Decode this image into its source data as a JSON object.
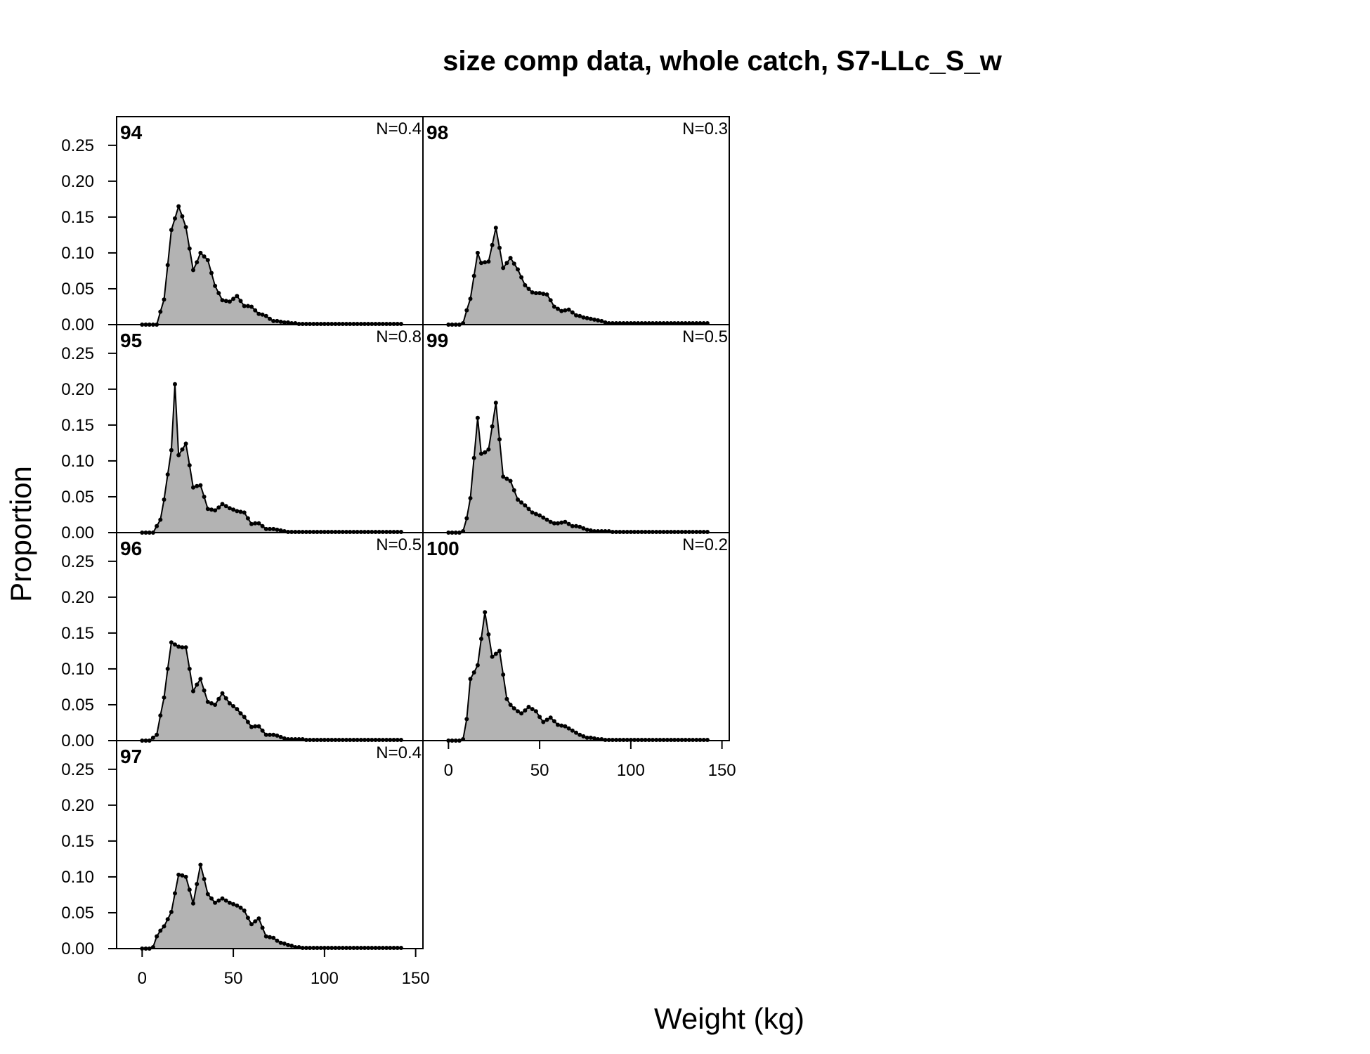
{
  "chart_data": {
    "type": "area",
    "title": "size comp data, whole catch, S7-LLc_S_w",
    "xlabel": "Weight (kg)",
    "ylabel": "Proportion",
    "xlim": [
      -14,
      154
    ],
    "ylim": [
      0,
      0.29
    ],
    "x_ticks": [
      0,
      50,
      100,
      150
    ],
    "y_ticks": [
      0,
      0.05,
      0.1,
      0.15,
      0.2,
      0.25
    ],
    "x_tick_labels": [
      "0",
      "50",
      "100",
      "150"
    ],
    "y_tick_labels": [
      "0.00",
      "0.05",
      "0.10",
      "0.15",
      "0.20",
      "0.25"
    ],
    "x": [
      0,
      2,
      4,
      6,
      8,
      10,
      12,
      14,
      16,
      18,
      20,
      22,
      24,
      26,
      28,
      30,
      32,
      34,
      36,
      38,
      40,
      42,
      44,
      46,
      48,
      50,
      52,
      54,
      56,
      58,
      60,
      62,
      64,
      66,
      68,
      70,
      72,
      74,
      76,
      78,
      80,
      82,
      84,
      86,
      88,
      90,
      92,
      94,
      96,
      98,
      100,
      102,
      104,
      106,
      108,
      110,
      112,
      114,
      116,
      118,
      120,
      122,
      124,
      126,
      128,
      130,
      132,
      134,
      136,
      138,
      140,
      142
    ],
    "series": [
      {
        "name": "94",
        "n_label": "N=0.4",
        "values": [
          0,
          0,
          0,
          0,
          0,
          0.018,
          0.035,
          0.083,
          0.132,
          0.148,
          0.165,
          0.151,
          0.136,
          0.106,
          0.076,
          0.087,
          0.1,
          0.095,
          0.09,
          0.072,
          0.054,
          0.044,
          0.034,
          0.033,
          0.032,
          0.036,
          0.04,
          0.033,
          0.026,
          0.026,
          0.025,
          0.02,
          0.015,
          0.014,
          0.012,
          0.008,
          0.005,
          0.005,
          0.004,
          0.003,
          0.003,
          0.002,
          0.002,
          0.001,
          0.001,
          0.001,
          0.001,
          0.001,
          0.001,
          0.001,
          0.001,
          0.001,
          0.001,
          0.001,
          0.001,
          0.001,
          0.001,
          0.001,
          0.001,
          0.001,
          0.001,
          0.001,
          0.001,
          0.001,
          0.001,
          0.001,
          0.001,
          0.001,
          0.001,
          0.001,
          0.001,
          0.001
        ]
      },
      {
        "name": "95",
        "n_label": "N=0.8",
        "values": [
          0,
          0,
          0,
          0,
          0.009,
          0.018,
          0.046,
          0.081,
          0.115,
          0.207,
          0.108,
          0.116,
          0.124,
          0.094,
          0.063,
          0.065,
          0.066,
          0.05,
          0.033,
          0.032,
          0.031,
          0.035,
          0.04,
          0.037,
          0.034,
          0.032,
          0.03,
          0.029,
          0.028,
          0.02,
          0.012,
          0.013,
          0.013,
          0.009,
          0.005,
          0.005,
          0.005,
          0.004,
          0.003,
          0.002,
          0.001,
          0.001,
          0.001,
          0.001,
          0.001,
          0.001,
          0.001,
          0.001,
          0.001,
          0.001,
          0.001,
          0.001,
          0.001,
          0.001,
          0.001,
          0.001,
          0.001,
          0.001,
          0.001,
          0.001,
          0.001,
          0.001,
          0.001,
          0.001,
          0.001,
          0.001,
          0.001,
          0.001,
          0.001,
          0.001,
          0.001,
          0.001
        ]
      },
      {
        "name": "96",
        "n_label": "N=0.5",
        "values": [
          0,
          0,
          0,
          0.004,
          0.008,
          0.035,
          0.06,
          0.1,
          0.137,
          0.134,
          0.131,
          0.13,
          0.13,
          0.1,
          0.069,
          0.078,
          0.086,
          0.07,
          0.054,
          0.052,
          0.05,
          0.058,
          0.066,
          0.059,
          0.052,
          0.048,
          0.044,
          0.038,
          0.033,
          0.026,
          0.019,
          0.02,
          0.02,
          0.014,
          0.008,
          0.008,
          0.008,
          0.007,
          0.005,
          0.003,
          0.002,
          0.002,
          0.002,
          0.002,
          0.002,
          0.001,
          0.001,
          0.001,
          0.001,
          0.001,
          0.001,
          0.001,
          0.001,
          0.001,
          0.001,
          0.001,
          0.001,
          0.001,
          0.001,
          0.001,
          0.001,
          0.001,
          0.001,
          0.001,
          0.001,
          0.001,
          0.001,
          0.001,
          0.001,
          0.001,
          0.001,
          0.001
        ]
      },
      {
        "name": "97",
        "n_label": "N=0.4",
        "values": [
          0,
          0,
          0,
          0.002,
          0.017,
          0.025,
          0.031,
          0.041,
          0.051,
          0.077,
          0.103,
          0.102,
          0.1,
          0.082,
          0.063,
          0.09,
          0.117,
          0.097,
          0.076,
          0.07,
          0.064,
          0.067,
          0.07,
          0.067,
          0.064,
          0.062,
          0.06,
          0.057,
          0.053,
          0.043,
          0.034,
          0.038,
          0.042,
          0.029,
          0.017,
          0.016,
          0.015,
          0.011,
          0.008,
          0.007,
          0.005,
          0.004,
          0.002,
          0.002,
          0.001,
          0.001,
          0.001,
          0.001,
          0.001,
          0.001,
          0.001,
          0.001,
          0.001,
          0.001,
          0.001,
          0.001,
          0.001,
          0.001,
          0.001,
          0.001,
          0.001,
          0.001,
          0.001,
          0.001,
          0.001,
          0.001,
          0.001,
          0.001,
          0.001,
          0.001,
          0.001,
          0.001
        ]
      },
      {
        "name": "98",
        "n_label": "N=0.3",
        "values": [
          0,
          0,
          0,
          0,
          0.002,
          0.02,
          0.036,
          0.068,
          0.1,
          0.086,
          0.087,
          0.088,
          0.111,
          0.135,
          0.107,
          0.079,
          0.086,
          0.093,
          0.085,
          0.077,
          0.066,
          0.055,
          0.05,
          0.045,
          0.044,
          0.044,
          0.043,
          0.042,
          0.034,
          0.025,
          0.022,
          0.019,
          0.02,
          0.021,
          0.017,
          0.013,
          0.012,
          0.01,
          0.009,
          0.008,
          0.007,
          0.006,
          0.005,
          0.003,
          0.002,
          0.002,
          0.002,
          0.002,
          0.002,
          0.002,
          0.002,
          0.002,
          0.002,
          0.002,
          0.002,
          0.002,
          0.002,
          0.002,
          0.002,
          0.002,
          0.002,
          0.002,
          0.002,
          0.002,
          0.002,
          0.002,
          0.002,
          0.002,
          0.002,
          0.002,
          0.002,
          0.002
        ]
      },
      {
        "name": "99",
        "n_label": "N=0.5",
        "values": [
          0,
          0,
          0,
          0,
          0.002,
          0.02,
          0.048,
          0.104,
          0.16,
          0.11,
          0.112,
          0.116,
          0.148,
          0.181,
          0.13,
          0.078,
          0.075,
          0.072,
          0.059,
          0.046,
          0.042,
          0.038,
          0.033,
          0.028,
          0.026,
          0.024,
          0.021,
          0.018,
          0.015,
          0.013,
          0.013,
          0.014,
          0.015,
          0.012,
          0.009,
          0.009,
          0.008,
          0.006,
          0.004,
          0.003,
          0.002,
          0.002,
          0.002,
          0.002,
          0.002,
          0.001,
          0.001,
          0.001,
          0.001,
          0.001,
          0.001,
          0.001,
          0.001,
          0.001,
          0.001,
          0.001,
          0.001,
          0.001,
          0.001,
          0.001,
          0.001,
          0.001,
          0.001,
          0.001,
          0.001,
          0.001,
          0.001,
          0.001,
          0.001,
          0.001,
          0.001,
          0.001
        ]
      },
      {
        "name": "100",
        "n_label": "N=0.2",
        "values": [
          0,
          0,
          0,
          0,
          0.002,
          0.03,
          0.086,
          0.095,
          0.105,
          0.142,
          0.179,
          0.148,
          0.117,
          0.121,
          0.125,
          0.092,
          0.058,
          0.05,
          0.045,
          0.041,
          0.038,
          0.042,
          0.047,
          0.044,
          0.041,
          0.033,
          0.026,
          0.029,
          0.032,
          0.027,
          0.022,
          0.021,
          0.02,
          0.017,
          0.014,
          0.011,
          0.008,
          0.006,
          0.004,
          0.004,
          0.003,
          0.002,
          0.002,
          0.001,
          0.001,
          0.001,
          0.001,
          0.001,
          0.001,
          0.001,
          0.001,
          0.001,
          0.001,
          0.001,
          0.001,
          0.001,
          0.001,
          0.001,
          0.001,
          0.001,
          0.001,
          0.001,
          0.001,
          0.001,
          0.001,
          0.001,
          0.001,
          0.001,
          0.001,
          0.001,
          0.001,
          0.001
        ]
      }
    ],
    "colors": {
      "fill": "#b3b3b3",
      "line": "#000000",
      "point": "#000000",
      "frame": "#000000"
    },
    "grid": false,
    "legend": "none"
  }
}
